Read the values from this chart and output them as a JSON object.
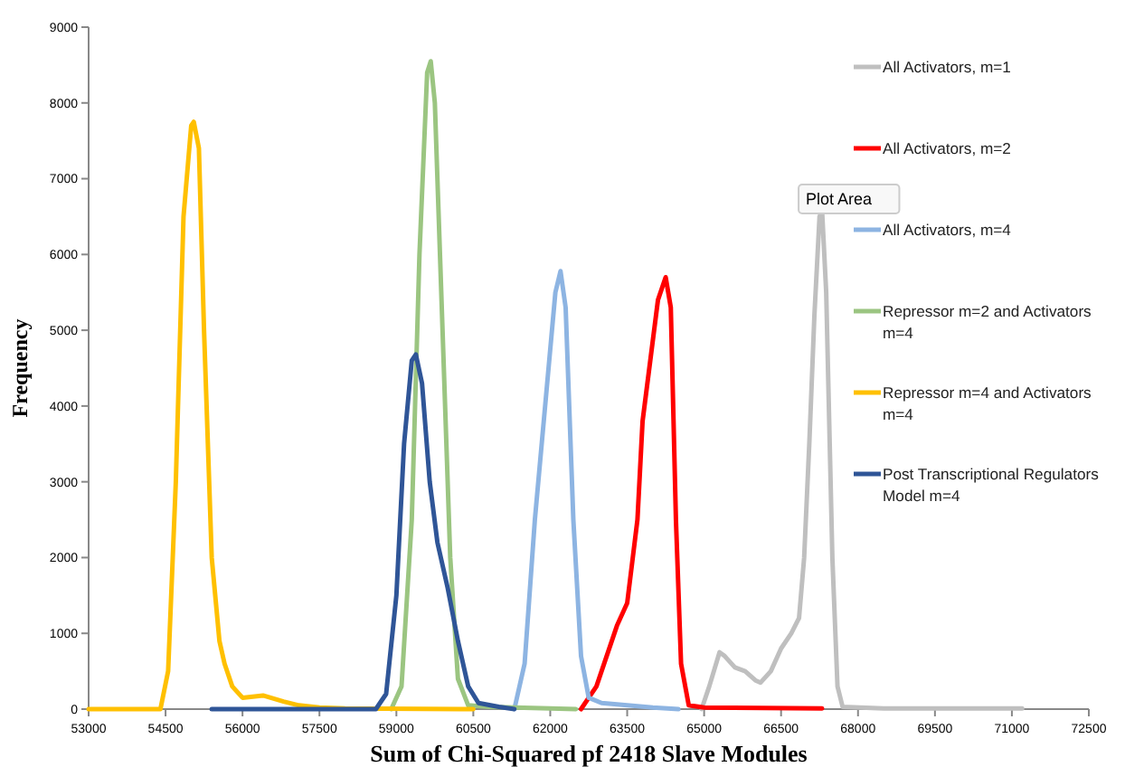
{
  "chart_data": {
    "type": "line",
    "xlabel": "Sum of Chi-Squared pf 2418 Slave Modules",
    "ylabel": "Frequency",
    "xlim": [
      53000,
      72500
    ],
    "xticks": [
      53000,
      54500,
      56000,
      57500,
      59000,
      60500,
      62000,
      63500,
      65000,
      66500,
      68000,
      69500,
      71000,
      72500
    ],
    "ylim": [
      0,
      9000
    ],
    "yticks": [
      0,
      1000,
      2000,
      3000,
      4000,
      5000,
      6000,
      7000,
      8000,
      9000
    ],
    "grid": false,
    "legend": "right",
    "marker": "none",
    "line_style": "solid",
    "annotations": [
      "Plot Area"
    ],
    "series": [
      {
        "name": "All Activators, m=1",
        "color": "#bfbfbf",
        "x": [
          64950,
          65100,
          65300,
          65400,
          65600,
          65800,
          66000,
          66100,
          66300,
          66500,
          66700,
          66850,
          66950,
          67050,
          67150,
          67250,
          67300,
          67380,
          67500,
          67600,
          67700,
          68500,
          71200
        ],
        "values": [
          0,
          300,
          750,
          700,
          550,
          500,
          380,
          350,
          500,
          800,
          1000,
          1200,
          2000,
          3500,
          5200,
          6500,
          6570,
          5500,
          2000,
          300,
          30,
          10,
          10
        ]
      },
      {
        "name": "All Activators, m=2",
        "color": "#ff0000",
        "x": [
          62600,
          62900,
          63100,
          63300,
          63500,
          63700,
          63800,
          63950,
          64100,
          64250,
          64350,
          64450,
          64550,
          64700,
          65000,
          67300
        ],
        "values": [
          0,
          300,
          700,
          1100,
          1400,
          2500,
          3800,
          4600,
          5400,
          5700,
          5300,
          2500,
          600,
          50,
          20,
          10
        ]
      },
      {
        "name": "All Activators, m=4",
        "color": "#8db4e2",
        "x": [
          61300,
          61500,
          61700,
          61900,
          62100,
          62200,
          62300,
          62450,
          62600,
          62750,
          63000,
          63500,
          64000,
          64500
        ],
        "values": [
          0,
          600,
          2500,
          4000,
          5500,
          5780,
          5300,
          2500,
          700,
          150,
          80,
          50,
          20,
          0
        ]
      },
      {
        "name": "Repressor m=2 and Activators m=4",
        "color": "#9bc581",
        "x": [
          58900,
          59100,
          59300,
          59450,
          59600,
          59670,
          59750,
          59900,
          60050,
          60200,
          60400,
          60800,
          62000,
          62500
        ],
        "values": [
          0,
          300,
          2500,
          6000,
          8400,
          8550,
          8000,
          5000,
          2000,
          400,
          50,
          30,
          10,
          0
        ]
      },
      {
        "name": "Repressor m=4 and Activators m=4",
        "color": "#ffc000",
        "x": [
          53000,
          54400,
          54550,
          54700,
          54850,
          55000,
          55050,
          55150,
          55250,
          55400,
          55550,
          55650,
          55800,
          56000,
          56400,
          56800,
          57100,
          57500,
          58000,
          60500
        ],
        "values": [
          0,
          0,
          500,
          3000,
          6500,
          7700,
          7750,
          7400,
          5000,
          2000,
          900,
          600,
          300,
          150,
          180,
          100,
          50,
          20,
          10,
          0
        ]
      },
      {
        "name": "Post Transcriptional Regulators Model m=4",
        "color": "#2f5597",
        "x": [
          55400,
          58600,
          58800,
          59000,
          59150,
          59300,
          59380,
          59500,
          59650,
          59800,
          60000,
          60200,
          60400,
          60600,
          61000,
          61300
        ],
        "values": [
          0,
          0,
          200,
          1500,
          3500,
          4600,
          4680,
          4300,
          3000,
          2200,
          1600,
          900,
          300,
          80,
          30,
          0
        ]
      }
    ]
  }
}
